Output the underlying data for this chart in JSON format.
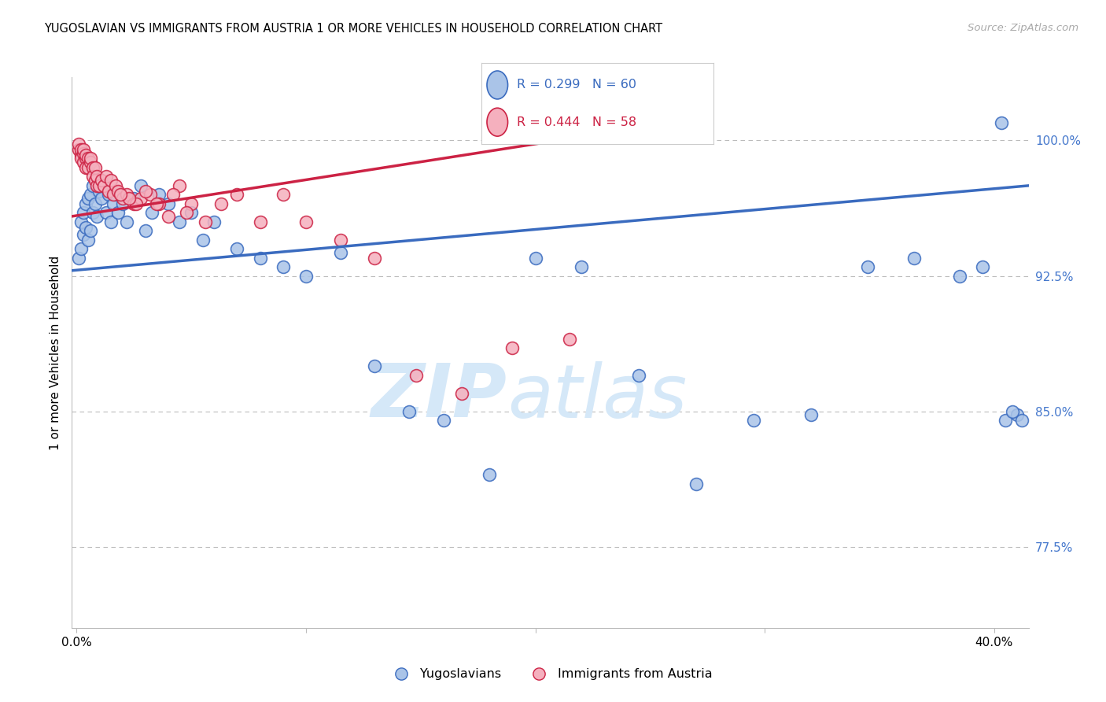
{
  "title": "YUGOSLAVIAN VS IMMIGRANTS FROM AUSTRIA 1 OR MORE VEHICLES IN HOUSEHOLD CORRELATION CHART",
  "source": "Source: ZipAtlas.com",
  "ylabel": "1 or more Vehicles in Household",
  "yticks": [
    77.5,
    85.0,
    92.5,
    100.0
  ],
  "ytick_labels": [
    "77.5%",
    "85.0%",
    "92.5%",
    "100.0%"
  ],
  "ymin": 73.0,
  "ymax": 103.5,
  "xmin": -0.002,
  "xmax": 0.415,
  "blue_color": "#aac4e8",
  "pink_color": "#f5b0be",
  "line_blue": "#3a6bbf",
  "line_pink": "#cc2244",
  "axis_label_color": "#4477cc",
  "watermark_zip": "#d5e8f8",
  "watermark_atlas": "#d5e8f8",
  "note_xtick_left": "0.0%",
  "note_xtick_right": "40.0%",
  "series1_x": [
    0.001,
    0.002,
    0.002,
    0.003,
    0.003,
    0.004,
    0.004,
    0.005,
    0.005,
    0.006,
    0.006,
    0.007,
    0.007,
    0.008,
    0.009,
    0.01,
    0.011,
    0.012,
    0.013,
    0.014,
    0.015,
    0.016,
    0.017,
    0.018,
    0.02,
    0.022,
    0.025,
    0.028,
    0.03,
    0.033,
    0.036,
    0.04,
    0.045,
    0.05,
    0.055,
    0.06,
    0.07,
    0.08,
    0.09,
    0.1,
    0.115,
    0.13,
    0.145,
    0.16,
    0.18,
    0.2,
    0.22,
    0.245,
    0.27,
    0.295,
    0.32,
    0.345,
    0.365,
    0.385,
    0.395,
    0.405,
    0.41,
    0.412,
    0.408,
    0.403
  ],
  "series1_y": [
    93.5,
    94.0,
    95.5,
    94.8,
    96.0,
    95.2,
    96.5,
    94.5,
    96.8,
    95.0,
    97.0,
    96.0,
    97.5,
    96.5,
    95.8,
    97.2,
    96.8,
    97.5,
    96.0,
    97.0,
    95.5,
    96.5,
    97.0,
    96.0,
    96.5,
    95.5,
    96.8,
    97.5,
    95.0,
    96.0,
    97.0,
    96.5,
    95.5,
    96.0,
    94.5,
    95.5,
    94.0,
    93.5,
    93.0,
    92.5,
    93.8,
    87.5,
    85.0,
    84.5,
    81.5,
    93.5,
    93.0,
    87.0,
    81.0,
    84.5,
    84.8,
    93.0,
    93.5,
    92.5,
    93.0,
    84.5,
    84.8,
    84.5,
    85.0,
    101.0
  ],
  "series2_x": [
    0.001,
    0.001,
    0.002,
    0.002,
    0.002,
    0.003,
    0.003,
    0.003,
    0.004,
    0.004,
    0.004,
    0.005,
    0.005,
    0.006,
    0.006,
    0.007,
    0.007,
    0.008,
    0.008,
    0.009,
    0.009,
    0.01,
    0.011,
    0.012,
    0.013,
    0.014,
    0.015,
    0.016,
    0.017,
    0.018,
    0.02,
    0.022,
    0.025,
    0.028,
    0.032,
    0.036,
    0.04,
    0.045,
    0.05,
    0.056,
    0.063,
    0.07,
    0.08,
    0.09,
    0.1,
    0.115,
    0.13,
    0.148,
    0.168,
    0.19,
    0.215,
    0.042,
    0.048,
    0.035,
    0.03,
    0.026,
    0.023,
    0.019
  ],
  "series2_y": [
    99.5,
    99.8,
    99.2,
    99.5,
    99.0,
    99.3,
    98.8,
    99.5,
    99.0,
    98.5,
    99.2,
    99.0,
    98.5,
    98.8,
    99.0,
    98.5,
    98.0,
    97.8,
    98.5,
    97.5,
    98.0,
    97.5,
    97.8,
    97.5,
    98.0,
    97.2,
    97.8,
    97.0,
    97.5,
    97.2,
    96.8,
    97.0,
    96.5,
    96.8,
    97.0,
    96.5,
    95.8,
    97.5,
    96.5,
    95.5,
    96.5,
    97.0,
    95.5,
    97.0,
    95.5,
    94.5,
    93.5,
    87.0,
    86.0,
    88.5,
    89.0,
    97.0,
    96.0,
    96.5,
    97.2,
    96.5,
    96.8,
    97.0
  ],
  "trendline1_x": [
    -0.002,
    0.415
  ],
  "trendline1_y": [
    92.8,
    97.5
  ],
  "trendline2_x": [
    -0.002,
    0.235
  ],
  "trendline2_y": [
    95.8,
    100.5
  ]
}
